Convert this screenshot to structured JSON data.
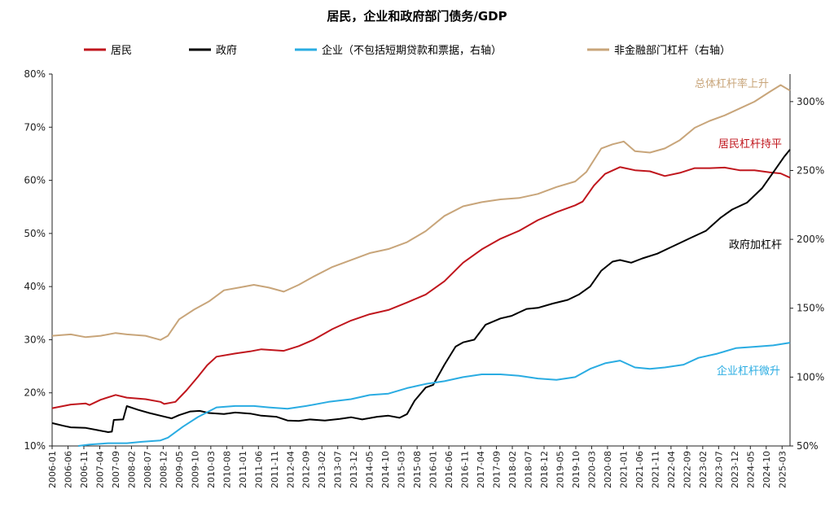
{
  "chart_data": {
    "type": "line",
    "title": "居民，企业和政府部门债务/GDP",
    "x_labels": [
      "2006-01",
      "2006-06",
      "2006-11",
      "2007-04",
      "2007-09",
      "2008-02",
      "2008-07",
      "2008-12",
      "2009-05",
      "2009-10",
      "2010-03",
      "2010-08",
      "2011-01",
      "2011-06",
      "2011-11",
      "2012-04",
      "2012-09",
      "2013-02",
      "2013-07",
      "2013-12",
      "2014-05",
      "2014-10",
      "2015-03",
      "2015-08",
      "2016-01",
      "2016-06",
      "2016-11",
      "2017-04",
      "2017-09",
      "2018-02",
      "2018-07",
      "2018-12",
      "2019-05",
      "2019-10",
      "2020-03",
      "2020-08",
      "2021-01",
      "2021-06",
      "2021-11",
      "2022-04",
      "2022-09",
      "2023-02",
      "2023-07",
      "2023-12",
      "2024-05",
      "2024-10",
      "2025-03"
    ],
    "x_range": [
      2006.0,
      2025.75
    ],
    "y_left": {
      "min": 0.1,
      "max": 0.8,
      "ticks": [
        "10%",
        "20%",
        "30%",
        "40%",
        "50%",
        "60%",
        "70%",
        "80%"
      ]
    },
    "y_right": {
      "min": 0.5,
      "max": 3.2,
      "ticks": [
        "50%",
        "100%",
        "150%",
        "200%",
        "250%",
        "300%"
      ]
    },
    "legend": {
      "position": "top",
      "items": [
        {
          "name": "居民",
          "color": "#C0161D"
        },
        {
          "name": "政府",
          "color": "#000000"
        },
        {
          "name": "企业（不包括短期贷款和票据，右轴）",
          "color": "#2AACE2"
        },
        {
          "name": "非金融部门杠杆（右轴）",
          "color": "#C8A57A"
        }
      ]
    },
    "series": [
      {
        "name": "居民",
        "axis": "left",
        "color": "#C0161D",
        "points": [
          [
            2006.0,
            0.171
          ],
          [
            2006.5,
            0.178
          ],
          [
            2006.9,
            0.18
          ],
          [
            2007.0,
            0.177
          ],
          [
            2007.3,
            0.187
          ],
          [
            2007.7,
            0.196
          ],
          [
            2008.0,
            0.191
          ],
          [
            2008.5,
            0.188
          ],
          [
            2008.9,
            0.183
          ],
          [
            2009.0,
            0.179
          ],
          [
            2009.3,
            0.183
          ],
          [
            2009.6,
            0.205
          ],
          [
            2009.9,
            0.23
          ],
          [
            2010.15,
            0.252
          ],
          [
            2010.4,
            0.268
          ],
          [
            2010.9,
            0.274
          ],
          [
            2011.3,
            0.278
          ],
          [
            2011.6,
            0.282
          ],
          [
            2012.2,
            0.279
          ],
          [
            2012.6,
            0.288
          ],
          [
            2013.0,
            0.3
          ],
          [
            2013.5,
            0.32
          ],
          [
            2014.0,
            0.336
          ],
          [
            2014.5,
            0.348
          ],
          [
            2015.0,
            0.356
          ],
          [
            2015.5,
            0.37
          ],
          [
            2016.0,
            0.385
          ],
          [
            2016.5,
            0.41
          ],
          [
            2017.0,
            0.445
          ],
          [
            2017.5,
            0.47
          ],
          [
            2018.0,
            0.49
          ],
          [
            2018.5,
            0.505
          ],
          [
            2019.0,
            0.525
          ],
          [
            2019.5,
            0.54
          ],
          [
            2020.0,
            0.553
          ],
          [
            2020.2,
            0.56
          ],
          [
            2020.5,
            0.59
          ],
          [
            2020.8,
            0.612
          ],
          [
            2021.2,
            0.625
          ],
          [
            2021.6,
            0.619
          ],
          [
            2022.0,
            0.617
          ],
          [
            2022.4,
            0.608
          ],
          [
            2022.8,
            0.614
          ],
          [
            2023.2,
            0.623
          ],
          [
            2023.6,
            0.623
          ],
          [
            2024.0,
            0.624
          ],
          [
            2024.4,
            0.619
          ],
          [
            2024.8,
            0.619
          ],
          [
            2025.2,
            0.615
          ],
          [
            2025.5,
            0.613
          ],
          [
            2025.75,
            0.605
          ]
        ]
      },
      {
        "name": "政府",
        "axis": "left",
        "color": "#000000",
        "points": [
          [
            2006.0,
            0.143
          ],
          [
            2006.3,
            0.138
          ],
          [
            2006.5,
            0.135
          ],
          [
            2006.9,
            0.134
          ],
          [
            2007.2,
            0.13
          ],
          [
            2007.5,
            0.126
          ],
          [
            2007.6,
            0.127
          ],
          [
            2007.65,
            0.149
          ],
          [
            2007.9,
            0.15
          ],
          [
            2008.0,
            0.175
          ],
          [
            2008.3,
            0.168
          ],
          [
            2008.6,
            0.162
          ],
          [
            2008.9,
            0.157
          ],
          [
            2009.2,
            0.152
          ],
          [
            2009.4,
            0.158
          ],
          [
            2009.7,
            0.165
          ],
          [
            2009.95,
            0.166
          ],
          [
            2010.2,
            0.162
          ],
          [
            2010.6,
            0.16
          ],
          [
            2010.9,
            0.163
          ],
          [
            2011.3,
            0.161
          ],
          [
            2011.6,
            0.157
          ],
          [
            2012.0,
            0.155
          ],
          [
            2012.3,
            0.148
          ],
          [
            2012.6,
            0.147
          ],
          [
            2012.9,
            0.15
          ],
          [
            2013.3,
            0.148
          ],
          [
            2013.7,
            0.151
          ],
          [
            2014.0,
            0.154
          ],
          [
            2014.3,
            0.15
          ],
          [
            2014.7,
            0.155
          ],
          [
            2015.0,
            0.157
          ],
          [
            2015.3,
            0.153
          ],
          [
            2015.5,
            0.16
          ],
          [
            2015.7,
            0.185
          ],
          [
            2016.0,
            0.21
          ],
          [
            2016.2,
            0.215
          ],
          [
            2016.5,
            0.253
          ],
          [
            2016.8,
            0.287
          ],
          [
            2017.0,
            0.295
          ],
          [
            2017.3,
            0.3
          ],
          [
            2017.6,
            0.328
          ],
          [
            2018.0,
            0.34
          ],
          [
            2018.3,
            0.345
          ],
          [
            2018.7,
            0.358
          ],
          [
            2019.0,
            0.36
          ],
          [
            2019.4,
            0.368
          ],
          [
            2019.8,
            0.375
          ],
          [
            2020.1,
            0.385
          ],
          [
            2020.4,
            0.4
          ],
          [
            2020.7,
            0.43
          ],
          [
            2021.0,
            0.447
          ],
          [
            2021.2,
            0.45
          ],
          [
            2021.5,
            0.445
          ],
          [
            2021.8,
            0.453
          ],
          [
            2022.2,
            0.462
          ],
          [
            2022.5,
            0.472
          ],
          [
            2022.8,
            0.482
          ],
          [
            2023.1,
            0.492
          ],
          [
            2023.5,
            0.505
          ],
          [
            2023.9,
            0.53
          ],
          [
            2024.2,
            0.545
          ],
          [
            2024.6,
            0.558
          ],
          [
            2025.0,
            0.585
          ],
          [
            2025.3,
            0.615
          ],
          [
            2025.6,
            0.645
          ],
          [
            2025.75,
            0.658
          ]
        ]
      },
      {
        "name": "企业（不包括短期贷款和票据，右轴）",
        "axis": "right",
        "color": "#2AACE2",
        "points": [
          [
            2006.7,
            0.5
          ],
          [
            2007.0,
            0.51
          ],
          [
            2007.5,
            0.52
          ],
          [
            2008.0,
            0.52
          ],
          [
            2008.4,
            0.53
          ],
          [
            2008.9,
            0.54
          ],
          [
            2009.1,
            0.56
          ],
          [
            2009.5,
            0.64
          ],
          [
            2009.9,
            0.71
          ],
          [
            2010.4,
            0.78
          ],
          [
            2010.9,
            0.79
          ],
          [
            2011.4,
            0.79
          ],
          [
            2011.8,
            0.78
          ],
          [
            2012.3,
            0.77
          ],
          [
            2012.8,
            0.79
          ],
          [
            2013.4,
            0.82
          ],
          [
            2014.0,
            0.84
          ],
          [
            2014.5,
            0.87
          ],
          [
            2015.0,
            0.88
          ],
          [
            2015.5,
            0.92
          ],
          [
            2016.0,
            0.95
          ],
          [
            2016.5,
            0.97
          ],
          [
            2017.0,
            1.0
          ],
          [
            2017.5,
            1.02
          ],
          [
            2018.0,
            1.02
          ],
          [
            2018.5,
            1.01
          ],
          [
            2019.0,
            0.99
          ],
          [
            2019.5,
            0.98
          ],
          [
            2020.0,
            1.0
          ],
          [
            2020.4,
            1.06
          ],
          [
            2020.8,
            1.1
          ],
          [
            2021.2,
            1.12
          ],
          [
            2021.6,
            1.07
          ],
          [
            2022.0,
            1.06
          ],
          [
            2022.4,
            1.07
          ],
          [
            2022.9,
            1.09
          ],
          [
            2023.3,
            1.14
          ],
          [
            2023.8,
            1.17
          ],
          [
            2024.3,
            1.21
          ],
          [
            2024.8,
            1.22
          ],
          [
            2025.3,
            1.23
          ],
          [
            2025.75,
            1.25
          ]
        ]
      },
      {
        "name": "非金融部门杠杆（右轴）",
        "axis": "right",
        "color": "#C8A57A",
        "points": [
          [
            2006.0,
            1.3
          ],
          [
            2006.5,
            1.31
          ],
          [
            2006.9,
            1.29
          ],
          [
            2007.3,
            1.3
          ],
          [
            2007.7,
            1.32
          ],
          [
            2008.0,
            1.31
          ],
          [
            2008.5,
            1.3
          ],
          [
            2008.9,
            1.27
          ],
          [
            2009.1,
            1.3
          ],
          [
            2009.4,
            1.42
          ],
          [
            2009.8,
            1.49
          ],
          [
            2010.2,
            1.55
          ],
          [
            2010.6,
            1.63
          ],
          [
            2011.0,
            1.65
          ],
          [
            2011.4,
            1.67
          ],
          [
            2011.8,
            1.65
          ],
          [
            2012.2,
            1.62
          ],
          [
            2012.6,
            1.67
          ],
          [
            2013.0,
            1.73
          ],
          [
            2013.5,
            1.8
          ],
          [
            2014.0,
            1.85
          ],
          [
            2014.5,
            1.9
          ],
          [
            2015.0,
            1.93
          ],
          [
            2015.5,
            1.98
          ],
          [
            2016.0,
            2.06
          ],
          [
            2016.5,
            2.17
          ],
          [
            2017.0,
            2.24
          ],
          [
            2017.5,
            2.27
          ],
          [
            2018.0,
            2.29
          ],
          [
            2018.5,
            2.3
          ],
          [
            2019.0,
            2.33
          ],
          [
            2019.5,
            2.38
          ],
          [
            2020.0,
            2.42
          ],
          [
            2020.3,
            2.49
          ],
          [
            2020.7,
            2.66
          ],
          [
            2021.0,
            2.69
          ],
          [
            2021.3,
            2.71
          ],
          [
            2021.6,
            2.64
          ],
          [
            2022.0,
            2.63
          ],
          [
            2022.4,
            2.66
          ],
          [
            2022.8,
            2.72
          ],
          [
            2023.2,
            2.81
          ],
          [
            2023.6,
            2.86
          ],
          [
            2024.0,
            2.9
          ],
          [
            2024.4,
            2.95
          ],
          [
            2024.8,
            3.0
          ],
          [
            2025.2,
            3.07
          ],
          [
            2025.5,
            3.12
          ],
          [
            2025.75,
            3.08
          ]
        ]
      }
    ],
    "annotations": [
      {
        "text": "总体杠杆率上升",
        "color": "#C8A57A"
      },
      {
        "text": "居民杠杆持平",
        "color": "#C0161D"
      },
      {
        "text": "政府加杠杆",
        "color": "#000000"
      },
      {
        "text": "企业杠杆微升",
        "color": "#2AACE2"
      }
    ]
  }
}
